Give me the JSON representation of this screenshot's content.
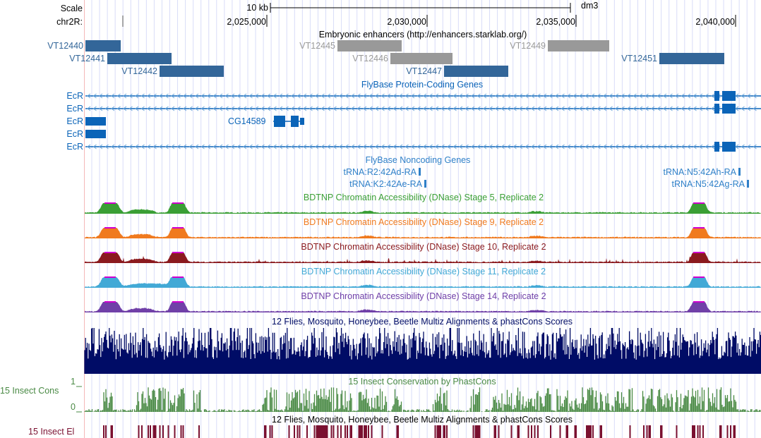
{
  "ruler": {
    "scale_label": "Scale",
    "chrom_label": "chr2R:",
    "scale_bar_label": "10 kb",
    "assembly": "dm3",
    "ticks": [
      {
        "label": "2,025,000",
        "pos": 2025000
      },
      {
        "label": "2,030,000",
        "pos": 2030000
      },
      {
        "label": "2,035,000",
        "pos": 2035000
      },
      {
        "label": "2,040,000",
        "pos": 2040000
      }
    ]
  },
  "enhancers": {
    "title": "Embryonic enhancers (http://enhancers.starklab.org/)",
    "items": [
      {
        "name": "VT12440",
        "active": true
      },
      {
        "name": "VT12441",
        "active": true
      },
      {
        "name": "VT12442",
        "active": true
      },
      {
        "name": "VT12445",
        "active": false
      },
      {
        "name": "VT12446",
        "active": false
      },
      {
        "name": "VT12447",
        "active": true
      },
      {
        "name": "VT12449",
        "active": false
      },
      {
        "name": "VT12451",
        "active": true
      }
    ]
  },
  "genes": {
    "title": "FlyBase Protein-Coding Genes",
    "rows": [
      "EcR",
      "EcR",
      "EcR",
      "EcR",
      "EcR"
    ],
    "other": "CG14589"
  },
  "noncoding": {
    "title": "FlyBase Noncoding Genes",
    "items": [
      "tRNA:R2:42Ad-RA",
      "tRNA:K2:42Ae-RA",
      "tRNA:N5:42Ah-RA",
      "tRNA:N5:42Ag-RA"
    ]
  },
  "dnase": [
    {
      "title": "BDTNP Chromatin Accessibility (DNase) Stage 5, Replicate 2",
      "color": "#3a9f35"
    },
    {
      "title": "BDTNP Chromatin Accessibility (DNase) Stage 9, Replicate 2",
      "color": "#f07a1e"
    },
    {
      "title": "BDTNP Chromatin Accessibility (DNase) Stage 10, Replicate 2",
      "color": "#8b1a1e"
    },
    {
      "title": "BDTNP Chromatin Accessibility (DNase) Stage 11, Replicate 2",
      "color": "#42a9d6"
    },
    {
      "title": "BDTNP Chromatin Accessibility (DNase) Stage 14, Replicate 2",
      "color": "#7040a8"
    }
  ],
  "conservation": {
    "multiz_title": "12 Flies, Mosquito, Honeybee, Beetle Multiz Alignments & phastCons Scores",
    "cons_title": "15 Insect Conservation by PhastCons",
    "cons_label": "15 Insect Cons",
    "axis_max": "1",
    "axis_min": "0",
    "elements_title": "12 Flies, Mosquito, Honeybee, Beetle Multiz Alignments & phastCons Scores",
    "elements_label": "15 Insect El"
  },
  "colors": {
    "enhancer_active": "#336699",
    "enhancer_inactive": "#999999",
    "gene": "#0b64b8",
    "multiz": "#000c66",
    "cons": "#4a8a45",
    "elements": "#7a1030",
    "peak_top": "#d000d0"
  }
}
